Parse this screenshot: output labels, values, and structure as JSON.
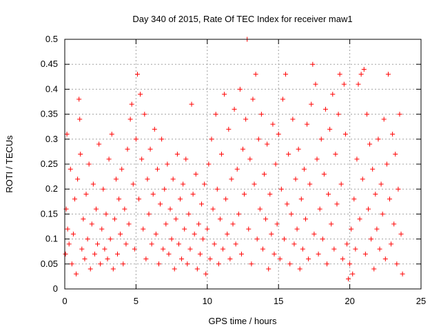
{
  "chart_data": {
    "type": "scatter",
    "title": "Day 340 of 2015, Rate Of TEC Index for receiver maw1",
    "xlabel": "GPS time / hours",
    "ylabel": "ROTI / TECUs",
    "xlim": [
      0,
      25
    ],
    "ylim": [
      0,
      0.5
    ],
    "x_ticks": [
      0,
      5,
      10,
      15,
      20,
      25
    ],
    "x_tick_labels": [
      "0",
      "5",
      "10",
      "15",
      "20",
      "25"
    ],
    "y_ticks": [
      0,
      0.05,
      0.1,
      0.15,
      0.2,
      0.25,
      0.3,
      0.35,
      0.4,
      0.45,
      0.5
    ],
    "y_tick_labels": [
      "0",
      "0.05",
      "0.1",
      "0.15",
      "0.2",
      "0.25",
      "0.3",
      "0.35",
      "0.4",
      "0.45",
      "0.5"
    ],
    "grid": true,
    "marker": "+",
    "color": "#ff0000",
    "series": [
      {
        "points": [
          [
            0.05,
            0.07
          ],
          [
            0.1,
            0.16
          ],
          [
            0.15,
            0.31
          ],
          [
            0.2,
            0.12
          ],
          [
            0.3,
            0.09
          ],
          [
            0.4,
            0.24
          ],
          [
            0.5,
            0.05
          ],
          [
            0.6,
            0.11
          ],
          [
            0.7,
            0.18
          ],
          [
            0.8,
            0.03
          ],
          [
            0.9,
            0.22
          ],
          [
            1.0,
            0.38
          ],
          [
            1.05,
            0.34
          ],
          [
            1.1,
            0.27
          ],
          [
            1.2,
            0.08
          ],
          [
            1.3,
            0.14
          ],
          [
            1.4,
            0.06
          ],
          [
            1.5,
            0.19
          ],
          [
            1.6,
            0.1
          ],
          [
            1.7,
            0.25
          ],
          [
            1.8,
            0.04
          ],
          [
            1.9,
            0.13
          ],
          [
            2.0,
            0.21
          ],
          [
            2.1,
            0.07
          ],
          [
            2.2,
            0.16
          ],
          [
            2.3,
            0.09
          ],
          [
            2.4,
            0.29
          ],
          [
            2.5,
            0.05
          ],
          [
            2.6,
            0.12
          ],
          [
            2.7,
            0.2
          ],
          [
            2.8,
            0.08
          ],
          [
            2.9,
            0.15
          ],
          [
            3.0,
            0.06
          ],
          [
            3.1,
            0.26
          ],
          [
            3.2,
            0.1
          ],
          [
            3.3,
            0.31
          ],
          [
            3.4,
            0.04
          ],
          [
            3.5,
            0.14
          ],
          [
            3.6,
            0.22
          ],
          [
            3.7,
            0.07
          ],
          [
            3.8,
            0.18
          ],
          [
            3.9,
            0.11
          ],
          [
            4.0,
            0.24
          ],
          [
            4.1,
            0.05
          ],
          [
            4.2,
            0.16
          ],
          [
            4.3,
            0.09
          ],
          [
            4.4,
            0.28
          ],
          [
            4.5,
            0.13
          ],
          [
            4.6,
            0.34
          ],
          [
            4.7,
            0.37
          ],
          [
            4.8,
            0.21
          ],
          [
            4.9,
            0.08
          ],
          [
            5.0,
            0.3
          ],
          [
            5.1,
            0.43
          ],
          [
            5.2,
            0.18
          ],
          [
            5.3,
            0.39
          ],
          [
            5.4,
            0.26
          ],
          [
            5.5,
            0.12
          ],
          [
            5.6,
            0.35
          ],
          [
            5.7,
            0.06
          ],
          [
            5.8,
            0.22
          ],
          [
            5.9,
            0.15
          ],
          [
            6.0,
            0.28
          ],
          [
            6.1,
            0.09
          ],
          [
            6.2,
            0.19
          ],
          [
            6.3,
            0.32
          ],
          [
            6.4,
            0.11
          ],
          [
            6.5,
            0.24
          ],
          [
            6.6,
            0.05
          ],
          [
            6.7,
            0.17
          ],
          [
            6.8,
            0.3
          ],
          [
            6.9,
            0.08
          ],
          [
            7.0,
            0.2
          ],
          [
            7.1,
            0.13
          ],
          [
            7.2,
            0.25
          ],
          [
            7.3,
            0.07
          ],
          [
            7.4,
            0.16
          ],
          [
            7.5,
            0.1
          ],
          [
            7.6,
            0.22
          ],
          [
            7.7,
            0.04
          ],
          [
            7.8,
            0.14
          ],
          [
            7.9,
            0.27
          ],
          [
            8.0,
            0.09
          ],
          [
            8.1,
            0.18
          ],
          [
            8.2,
            0.06
          ],
          [
            8.3,
            0.21
          ],
          [
            8.4,
            0.12
          ],
          [
            8.5,
            0.26
          ],
          [
            8.6,
            0.05
          ],
          [
            8.7,
            0.15
          ],
          [
            8.8,
            0.08
          ],
          [
            8.9,
            0.37
          ],
          [
            9.0,
            0.19
          ],
          [
            9.1,
            0.11
          ],
          [
            9.2,
            0.23
          ],
          [
            9.3,
            0.04
          ],
          [
            9.4,
            0.13
          ],
          [
            9.5,
            0.07
          ],
          [
            9.6,
            0.17
          ],
          [
            9.7,
            0.1
          ],
          [
            9.8,
            0.21
          ],
          [
            9.9,
            0.03
          ],
          [
            10.0,
            0.12
          ],
          [
            10.1,
            0.25
          ],
          [
            10.2,
            0.06
          ],
          [
            10.3,
            0.3
          ],
          [
            10.4,
            0.16
          ],
          [
            10.5,
            0.09
          ],
          [
            10.6,
            0.35
          ],
          [
            10.7,
            0.2
          ],
          [
            10.8,
            0.05
          ],
          [
            10.9,
            0.14
          ],
          [
            11.0,
            0.27
          ],
          [
            11.1,
            0.08
          ],
          [
            11.2,
            0.39
          ],
          [
            11.3,
            0.18
          ],
          [
            11.4,
            0.11
          ],
          [
            11.5,
            0.32
          ],
          [
            11.6,
            0.06
          ],
          [
            11.7,
            0.22
          ],
          [
            11.8,
            0.13
          ],
          [
            11.9,
            0.36
          ],
          [
            12.0,
            0.09
          ],
          [
            12.1,
            0.24
          ],
          [
            12.2,
            0.15
          ],
          [
            12.3,
            0.4
          ],
          [
            12.4,
            0.07
          ],
          [
            12.5,
            0.28
          ],
          [
            12.6,
            0.19
          ],
          [
            12.7,
            0.34
          ],
          [
            12.8,
            0.5
          ],
          [
            12.9,
            0.12
          ],
          [
            13.0,
            0.26
          ],
          [
            13.1,
            0.05
          ],
          [
            13.2,
            0.38
          ],
          [
            13.3,
            0.21
          ],
          [
            13.4,
            0.43
          ],
          [
            13.5,
            0.1
          ],
          [
            13.6,
            0.3
          ],
          [
            13.7,
            0.16
          ],
          [
            13.8,
            0.35
          ],
          [
            13.9,
            0.08
          ],
          [
            14.0,
            0.23
          ],
          [
            14.1,
            0.14
          ],
          [
            14.2,
            0.29
          ],
          [
            14.3,
            0.04
          ],
          [
            14.4,
            0.19
          ],
          [
            14.5,
            0.11
          ],
          [
            14.6,
            0.33
          ],
          [
            14.7,
            0.07
          ],
          [
            14.8,
            0.25
          ],
          [
            14.9,
            0.13
          ],
          [
            15.0,
            0.31
          ],
          [
            15.1,
            0.06
          ],
          [
            15.2,
            0.2
          ],
          [
            15.3,
            0.38
          ],
          [
            15.4,
            0.1
          ],
          [
            15.5,
            0.43
          ],
          [
            15.6,
            0.17
          ],
          [
            15.7,
            0.27
          ],
          [
            15.8,
            0.05
          ],
          [
            15.9,
            0.15
          ],
          [
            16.0,
            0.34
          ],
          [
            16.1,
            0.09
          ],
          [
            16.2,
            0.22
          ],
          [
            16.3,
            0.12
          ],
          [
            16.4,
            0.28
          ],
          [
            16.5,
            0.04
          ],
          [
            16.6,
            0.18
          ],
          [
            16.7,
            0.08
          ],
          [
            16.8,
            0.24
          ],
          [
            16.9,
            0.14
          ],
          [
            17.0,
            0.33
          ],
          [
            17.1,
            0.06
          ],
          [
            17.2,
            0.21
          ],
          [
            17.3,
            0.37
          ],
          [
            17.4,
            0.45
          ],
          [
            17.5,
            0.11
          ],
          [
            17.6,
            0.41
          ],
          [
            17.7,
            0.26
          ],
          [
            17.8,
            0.07
          ],
          [
            17.9,
            0.16
          ],
          [
            18.0,
            0.3
          ],
          [
            18.1,
            0.1
          ],
          [
            18.2,
            0.23
          ],
          [
            18.3,
            0.36
          ],
          [
            18.4,
            0.05
          ],
          [
            18.5,
            0.19
          ],
          [
            18.6,
            0.32
          ],
          [
            18.7,
            0.13
          ],
          [
            18.8,
            0.39
          ],
          [
            18.9,
            0.08
          ],
          [
            19.0,
            0.27
          ],
          [
            19.1,
            0.17
          ],
          [
            19.2,
            0.35
          ],
          [
            19.3,
            0.43
          ],
          [
            19.4,
            0.21
          ],
          [
            19.5,
            0.06
          ],
          [
            19.6,
            0.41
          ],
          [
            19.7,
            0.31
          ],
          [
            19.8,
            0.09
          ],
          [
            19.9,
            0.02
          ],
          [
            20.0,
            0.05
          ],
          [
            20.1,
            0.12
          ],
          [
            20.2,
            0.03
          ],
          [
            20.3,
            0.18
          ],
          [
            20.4,
            0.08
          ],
          [
            20.5,
            0.26
          ],
          [
            20.6,
            0.41
          ],
          [
            20.7,
            0.14
          ],
          [
            20.8,
            0.43
          ],
          [
            20.9,
            0.22
          ],
          [
            21.0,
            0.44
          ],
          [
            21.1,
            0.07
          ],
          [
            21.2,
            0.35
          ],
          [
            21.3,
            0.16
          ],
          [
            21.4,
            0.29
          ],
          [
            21.5,
            0.1
          ],
          [
            21.6,
            0.24
          ],
          [
            21.7,
            0.04
          ],
          [
            21.8,
            0.19
          ],
          [
            21.9,
            0.12
          ],
          [
            22.0,
            0.3
          ],
          [
            22.1,
            0.08
          ],
          [
            22.2,
            0.21
          ],
          [
            22.3,
            0.15
          ],
          [
            22.4,
            0.34
          ],
          [
            22.5,
            0.06
          ],
          [
            22.6,
            0.25
          ],
          [
            22.7,
            0.43
          ],
          [
            22.8,
            0.18
          ],
          [
            22.9,
            0.09
          ],
          [
            23.0,
            0.31
          ],
          [
            23.1,
            0.13
          ],
          [
            23.2,
            0.27
          ],
          [
            23.3,
            0.05
          ],
          [
            23.4,
            0.2
          ],
          [
            23.5,
            0.35
          ],
          [
            23.6,
            0.11
          ],
          [
            23.7,
            0.03
          ]
        ]
      }
    ]
  }
}
